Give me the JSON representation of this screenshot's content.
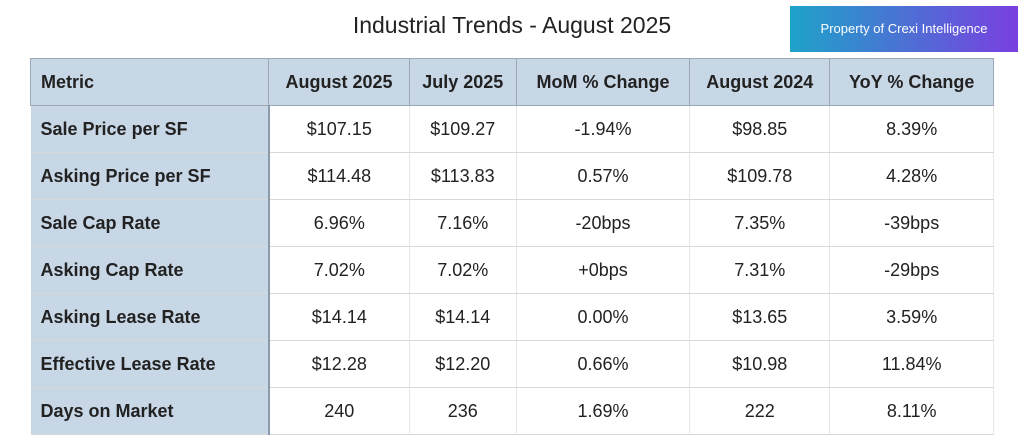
{
  "header": {
    "title": "Industrial Trends - August 2025",
    "badge": "Property of Crexi Intelligence"
  },
  "table": {
    "columns": [
      "Metric",
      "August 2025",
      "July 2025",
      "MoM % Change",
      "August 2024",
      "YoY % Change"
    ],
    "rows": [
      [
        "Sale Price per SF",
        "$107.15",
        "$109.27",
        "-1.94%",
        "$98.85",
        "8.39%"
      ],
      [
        "Asking Price per SF",
        "$114.48",
        "$113.83",
        "0.57%",
        "$109.78",
        "4.28%"
      ],
      [
        "Sale Cap Rate",
        "6.96%",
        "7.16%",
        "-20bps",
        "7.35%",
        "-39bps"
      ],
      [
        "Asking Cap Rate",
        "7.02%",
        "7.02%",
        "+0bps",
        "7.31%",
        "-29bps"
      ],
      [
        "Asking Lease Rate",
        "$14.14",
        "$14.14",
        "0.00%",
        "$13.65",
        "3.59%"
      ],
      [
        "Effective Lease Rate",
        "$12.28",
        "$12.20",
        "0.66%",
        "$10.98",
        "11.84%"
      ],
      [
        "Days on Market",
        "240",
        "236",
        "1.69%",
        "222",
        "8.11%"
      ]
    ]
  }
}
